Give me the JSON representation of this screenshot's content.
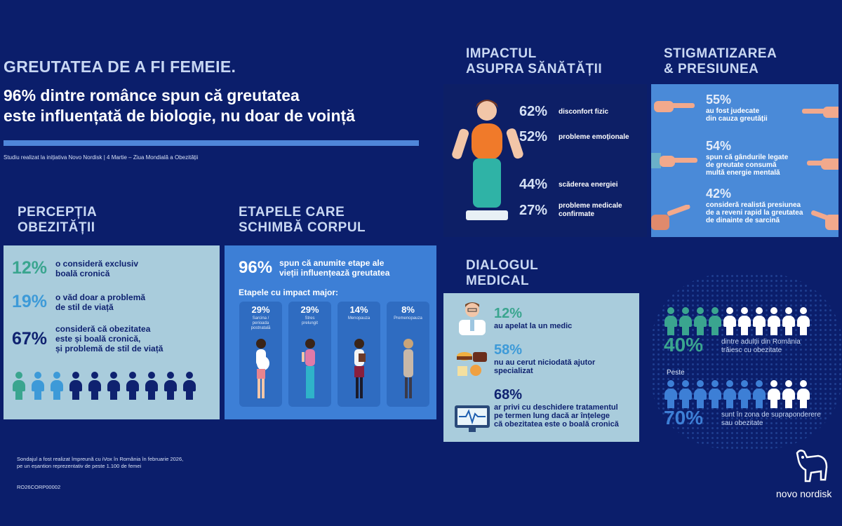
{
  "header": {
    "title": "GREUTATEA DE A FI FEMEIE.",
    "subtitle_line1": "96% dintre românce spun că greutatea",
    "subtitle_line2": "este influențată de biologie, nu doar de voință",
    "study_note": "Studiu realizat la inițiativa Novo Nordisk | 4 Martie – Ziua Mondială a Obezității"
  },
  "perceptia": {
    "title_line1": "PERCEPȚIA",
    "title_line2": "OBEZITĂȚII",
    "stats": [
      {
        "value": "12%",
        "text_line1": "o consideră exclusiv",
        "text_line2": "boală cronică",
        "text_line3": ""
      },
      {
        "value": "19%",
        "text_line1": "o văd doar a problemă",
        "text_line2": "de stil de viață",
        "text_line3": ""
      },
      {
        "value": "67%",
        "text_line1": "consideră că obezitatea",
        "text_line2": "este și boală cronică,",
        "text_line3": "și problemă de stil de viață"
      }
    ],
    "colors": {
      "teal": "#3aa58f",
      "light_blue": "#3d9ad8",
      "navy": "#0f2270"
    }
  },
  "etapele": {
    "title_line1": "ETAPELE CARE",
    "title_line2": "SCHIMBĂ CORPUL",
    "headline_value": "96%",
    "headline_line1": "spun că anumite etape ale",
    "headline_line2": "vieții influențează greutatea",
    "impact_label": "Etapele cu impact major:",
    "stages": [
      {
        "pct": "29%",
        "label_line1": "Sarcina /",
        "label_line2": "perioada",
        "label_line3": "postnatală"
      },
      {
        "pct": "29%",
        "label_line1": "Stres",
        "label_line2": "prelungit",
        "label_line3": ""
      },
      {
        "pct": "14%",
        "label_line1": "Menopauza",
        "label_line2": "",
        "label_line3": ""
      },
      {
        "pct": "8%",
        "label_line1": "Premenopauza",
        "label_line2": "",
        "label_line3": ""
      }
    ]
  },
  "impact": {
    "title_line1": "IMPACTUL",
    "title_line2": "ASUPRA SĂNĂTĂȚII",
    "stats": [
      {
        "value": "62%",
        "text_line1": "disconfort fizic",
        "text_line2": ""
      },
      {
        "value": "52%",
        "text_line1": "probleme emoționale",
        "text_line2": ""
      },
      {
        "value": "44%",
        "text_line1": "scăderea energiei",
        "text_line2": ""
      },
      {
        "value": "27%",
        "text_line1": "probleme medicale",
        "text_line2": "confirmate"
      }
    ]
  },
  "stigma": {
    "title_line1": "STIGMATIZAREA",
    "title_line2": "& PRESIUNEA",
    "stats": [
      {
        "value": "55%",
        "text_line1": "au fost judecate",
        "text_line2": "din cauza greutății",
        "text_line3": ""
      },
      {
        "value": "54%",
        "text_line1": "spun că gândurile legate",
        "text_line2": "de greutate consumă",
        "text_line3": "multă energie mentală"
      },
      {
        "value": "42%",
        "text_line1": "consideră realistă presiunea",
        "text_line2": "de a reveni rapid la greutatea",
        "text_line3": "de dinainte de sarcină"
      }
    ]
  },
  "dialog": {
    "title_line1": "DIALOGUL",
    "title_line2": "MEDICAL",
    "stats": [
      {
        "value": "12%",
        "text_line1": "au apelat la un medic",
        "text_line2": "",
        "text_line3": ""
      },
      {
        "value": "58%",
        "text_line1": "nu au cerut niciodată ajutor",
        "text_line2": "specializat",
        "text_line3": ""
      },
      {
        "value": "68%",
        "text_line1": "ar privi cu deschidere tratamentul",
        "text_line2": "pe termen lung dacă ar înțelege",
        "text_line3": "că obezitatea este o boală cronică"
      }
    ]
  },
  "adults": {
    "stat1_value": "40%",
    "stat1_line1": "dintre adulții din România",
    "stat1_line2": "trăiesc cu obezitate",
    "peste": "Peste",
    "stat2_value": "70%",
    "stat2_line1": "sunt în zona de supraponderere",
    "stat2_line2": "sau obezitate"
  },
  "footer": {
    "line1": "Sondajul a fost realizat împreună cu iVox în România în februarie 2026,",
    "line2": "pe un eșantion reprezentativ de peste 1.100 de femei",
    "code": "RO26CORP00002",
    "brand": "novo nordisk"
  }
}
